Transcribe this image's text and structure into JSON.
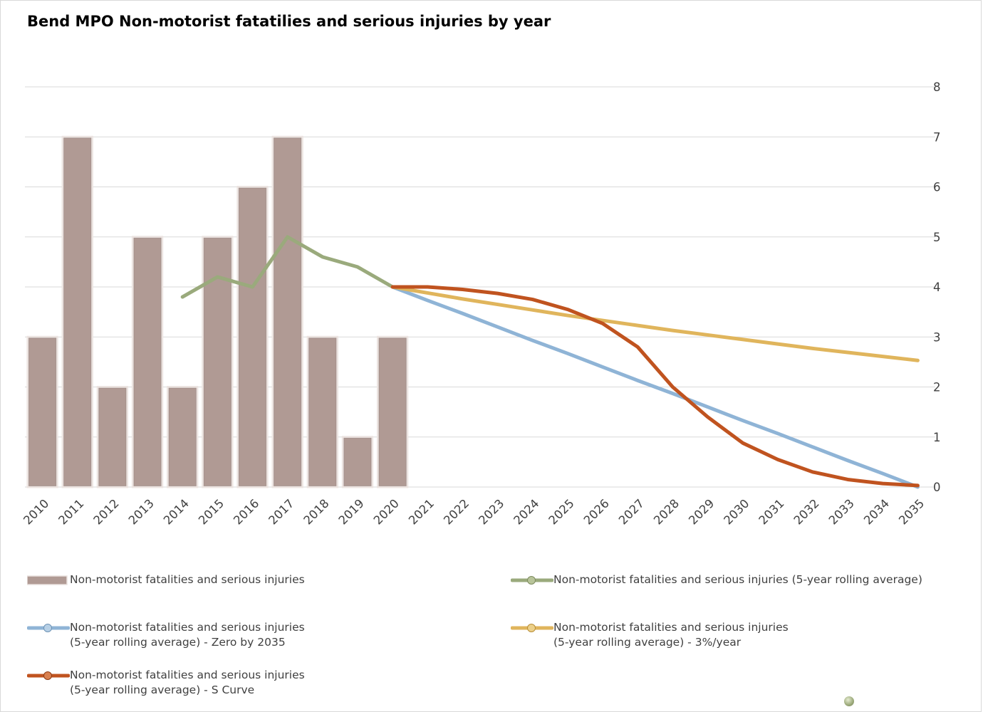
{
  "chart_data": {
    "type": "bar",
    "title": "Bend MPO Non-motorist fatatilies and serious injuries by year",
    "xlabel": "",
    "ylabel": "",
    "ylim": [
      0,
      8
    ],
    "yticks": [
      0,
      1,
      2,
      3,
      4,
      5,
      6,
      7,
      8
    ],
    "y_axis_side": "right",
    "grid": true,
    "legend_position": "bottom",
    "categories": [
      "2010",
      "2011",
      "2012",
      "2013",
      "2014",
      "2015",
      "2016",
      "2017",
      "2018",
      "2019",
      "2020",
      "2021",
      "2022",
      "2023",
      "2024",
      "2025",
      "2026",
      "2027",
      "2028",
      "2029",
      "2030",
      "2031",
      "2032",
      "2033",
      "2034",
      "2035"
    ],
    "series": [
      {
        "name": "Non-motorist fatalities and serious injuries",
        "kind": "bar",
        "color": "#b09a94",
        "values": [
          3,
          7,
          2,
          5,
          2,
          5,
          6,
          7,
          3,
          1,
          3,
          null,
          null,
          null,
          null,
          null,
          null,
          null,
          null,
          null,
          null,
          null,
          null,
          null,
          null,
          null
        ]
      },
      {
        "name": "Non-motorist fatalities and serious injuries (5-year rolling average)",
        "kind": "line",
        "color": "#9aaa7c",
        "values": [
          null,
          null,
          null,
          null,
          3.8,
          4.2,
          4.0,
          5.0,
          4.6,
          4.4,
          4.0,
          null,
          null,
          null,
          null,
          null,
          null,
          null,
          null,
          null,
          null,
          null,
          null,
          null,
          null,
          null
        ]
      },
      {
        "name": "Non-motorist fatalities and serious injuries (5-year rolling average) - Zero by 2035",
        "kind": "line",
        "color": "#8fb4d6",
        "values": [
          null,
          null,
          null,
          null,
          null,
          null,
          null,
          null,
          null,
          null,
          4.0,
          3.73,
          3.47,
          3.2,
          2.93,
          2.67,
          2.4,
          2.13,
          1.87,
          1.6,
          1.33,
          1.07,
          0.8,
          0.53,
          0.27,
          0.0
        ]
      },
      {
        "name": "Non-motorist fatalities and serious injuries (5-year rolling average) - 3%/year",
        "kind": "line",
        "color": "#e0b55c",
        "values": [
          null,
          null,
          null,
          null,
          null,
          null,
          null,
          null,
          null,
          null,
          4.0,
          3.88,
          3.76,
          3.65,
          3.54,
          3.43,
          3.33,
          3.23,
          3.13,
          3.04,
          2.95,
          2.86,
          2.77,
          2.69,
          2.61,
          2.53
        ]
      },
      {
        "name": "Non-motorist fatalities and serious injuries (5-year rolling average) - S Curve",
        "kind": "line",
        "color": "#c0531f",
        "values": [
          null,
          null,
          null,
          null,
          null,
          null,
          null,
          null,
          null,
          null,
          4.0,
          4.0,
          3.95,
          3.87,
          3.75,
          3.55,
          3.27,
          2.8,
          2.0,
          1.4,
          0.88,
          0.55,
          0.3,
          0.15,
          0.07,
          0.03
        ]
      }
    ]
  },
  "legend": {
    "bar_label": "Non-motorist fatalities and serious injuries",
    "rolling_label": "Non-motorist fatalities and serious injuries (5-year rolling average)",
    "zero_line1": "Non-motorist fatalities and serious injuries",
    "zero_line2": "(5-year rolling average) - Zero by 2035",
    "pct_line1": "Non-motorist fatalities and serious injuries",
    "pct_line2": "(5-year rolling average) - 3%/year",
    "s_line1": "Non-motorist fatalities and serious injuries",
    "s_line2": "(5-year rolling average) - S Curve"
  }
}
